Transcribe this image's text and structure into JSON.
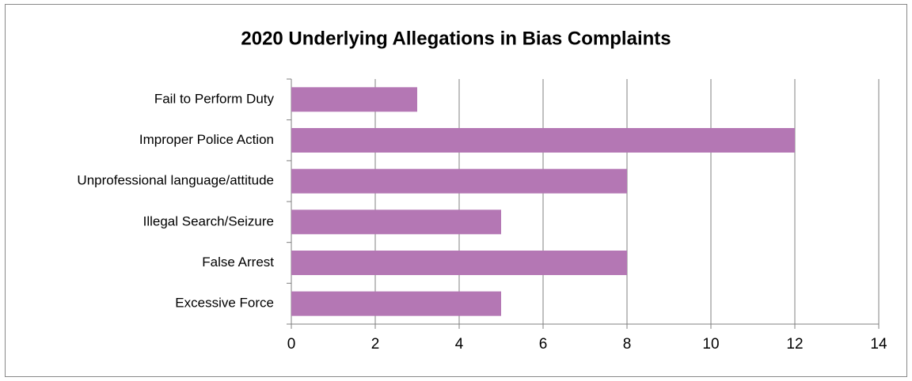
{
  "chart_data": {
    "type": "bar",
    "orientation": "horizontal",
    "title": "2020 Underlying Allegations in Bias Complaints",
    "categories": [
      "Fail to Perform Duty",
      "Improper Police Action",
      "Unprofessional language/attitude",
      "Illegal Search/Seizure",
      "False Arrest",
      "Excessive Force"
    ],
    "values": [
      3,
      12,
      8,
      5,
      8,
      5
    ],
    "color": "#b477b4",
    "xlim": [
      0,
      14
    ],
    "xticks": [
      0,
      2,
      4,
      6,
      8,
      10,
      12,
      14
    ],
    "grid": true
  }
}
